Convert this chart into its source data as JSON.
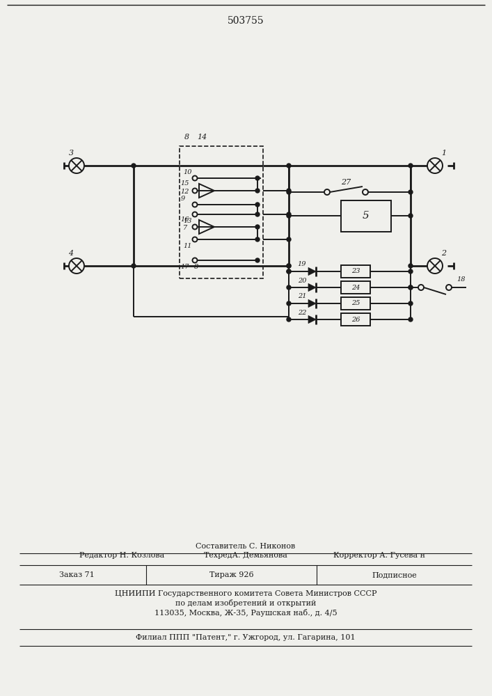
{
  "patent_number": "503755",
  "bg_color": "#f0f0ec",
  "line_color": "#1a1a1a",
  "title_line1": "Составитель С. Никонов",
  "title_line2_left": "Редактор Н. Козлова",
  "title_line2_mid": "ТехредА. Демьянова",
  "title_line2_right": "Корректор А. Гусева н",
  "row1_col1": "Заказ 71",
  "row1_col2": "Тираж 926",
  "row1_col3": "Подписное",
  "footer1": "ЦНИИПИ Государственного комитета Совета Министров СССР",
  "footer2": "по делам изобретений и открытий",
  "footer3": "113035, Москва, Ж-35, Раушская наб., д. 4/5",
  "footer4": "Филиал ППП \"Патент,\" г. Ужгород, ул. Гагарина, 101"
}
